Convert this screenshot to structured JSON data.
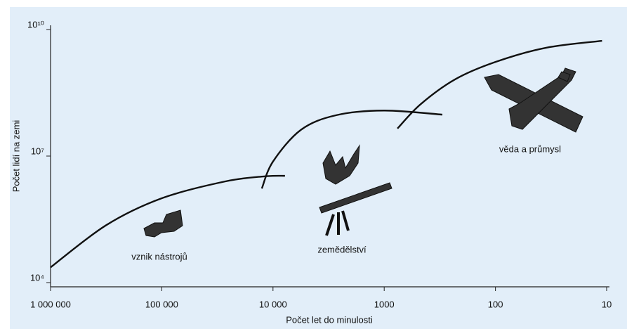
{
  "chart_data": {
    "type": "line",
    "xscale": "log",
    "yscale": "log",
    "xlabel": "Počet let do minulosti",
    "ylabel": "Počet lidí na zemi",
    "xlim": [
      1000000,
      10
    ],
    "ylim": [
      10000,
      10000000000
    ],
    "xticks": [
      {
        "value": 1000000,
        "label": "1 000 000"
      },
      {
        "value": 100000,
        "label": "100 000"
      },
      {
        "value": 10000,
        "label": "10 000"
      },
      1000,
      100,
      10
    ],
    "yticks": [
      {
        "value": 10000,
        "label": "10⁴"
      },
      {
        "value": 10000000,
        "label": "10⁷"
      },
      {
        "value": 10000000000,
        "label": "10¹⁰"
      }
    ],
    "series": [
      {
        "color": "#111111",
        "x": [
          1000000,
          316000,
          100000,
          27000,
          12000,
          7800
        ],
        "values": [
          23000,
          230000,
          1000000,
          2500000,
          3300000,
          3400000
        ]
      },
      {
        "color": "#111111",
        "x": [
          12600,
          10000,
          5600,
          2700,
          1000,
          300
        ],
        "values": [
          1700000,
          7400000,
          42000000,
          93000000,
          120000000,
          96000000
        ]
      },
      {
        "color": "#111111",
        "x": [
          760,
          470,
          230,
          100,
          35,
          11
        ],
        "values": [
          45000000,
          170000000,
          660000000,
          1700000000,
          3700000000,
          5400000000
        ]
      }
    ],
    "annotations": [
      "vznik nástrojů",
      "zemědělství",
      "věda a průmysl"
    ]
  }
}
